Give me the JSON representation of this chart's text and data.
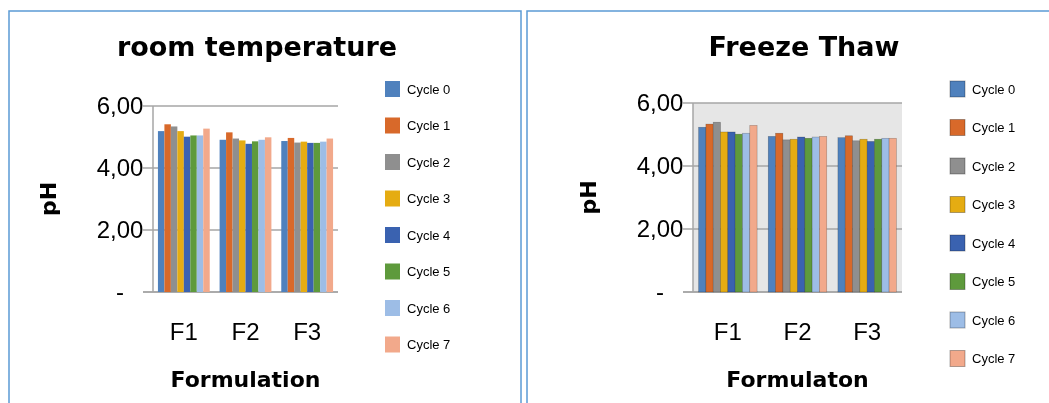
{
  "chart_data": [
    {
      "type": "bar",
      "title": "room temperature",
      "xlabel": "Formulation",
      "ylabel": "pH",
      "categories": [
        "F1",
        "F2",
        "F3"
      ],
      "ylim": [
        0,
        6
      ],
      "yticks": [
        {
          "value": 0,
          "label": "-"
        },
        {
          "value": 2,
          "label": "2,00"
        },
        {
          "value": 4,
          "label": "4,00"
        },
        {
          "value": 6,
          "label": "6,00"
        }
      ],
      "grid": "y",
      "legend": "right",
      "series": [
        {
          "name": "Cycle 0",
          "color": "#4f81bd",
          "values": [
            5.19,
            4.91,
            4.87
          ]
        },
        {
          "name": "Cycle 1",
          "color": "#d8692a",
          "values": [
            5.41,
            5.15,
            4.97
          ]
        },
        {
          "name": "Cycle 2",
          "color": "#8f8f8f",
          "values": [
            5.34,
            4.95,
            4.82
          ]
        },
        {
          "name": "Cycle 3",
          "color": "#e5ac12",
          "values": [
            5.19,
            4.89,
            4.85
          ]
        },
        {
          "name": "Cycle 4",
          "color": "#3a62b0",
          "values": [
            5.01,
            4.78,
            4.81
          ]
        },
        {
          "name": "Cycle 5",
          "color": "#5e9a3c",
          "values": [
            5.05,
            4.86,
            4.81
          ]
        },
        {
          "name": "Cycle 6",
          "color": "#9dbde6",
          "values": [
            5.05,
            4.91,
            4.85
          ]
        },
        {
          "name": "Cycle 7",
          "color": "#f2a98b",
          "values": [
            5.27,
            4.99,
            4.95
          ]
        }
      ]
    },
    {
      "type": "bar",
      "title": "Freeze Thaw",
      "xlabel": "Formulaton",
      "ylabel": "pH",
      "categories": [
        "F1",
        "F2",
        "F3"
      ],
      "ylim": [
        0,
        6
      ],
      "yticks": [
        {
          "value": 0,
          "label": "-"
        },
        {
          "value": 2,
          "label": "2,00"
        },
        {
          "value": 4,
          "label": "4,00"
        },
        {
          "value": 6,
          "label": "6,00"
        }
      ],
      "grid": "y",
      "legend": "right",
      "series": [
        {
          "name": "Cycle 0",
          "color": "#4f81bd",
          "values": [
            5.23,
            4.94,
            4.9
          ]
        },
        {
          "name": "Cycle 1",
          "color": "#d8692a",
          "values": [
            5.33,
            5.04,
            4.96
          ]
        },
        {
          "name": "Cycle 2",
          "color": "#8f8f8f",
          "values": [
            5.39,
            4.83,
            4.8
          ]
        },
        {
          "name": "Cycle 3",
          "color": "#e5ac12",
          "values": [
            5.08,
            4.85,
            4.85
          ]
        },
        {
          "name": "Cycle 4",
          "color": "#3a62b0",
          "values": [
            5.08,
            4.92,
            4.78
          ]
        },
        {
          "name": "Cycle 5",
          "color": "#5e9a3c",
          "values": [
            5.01,
            4.88,
            4.85
          ]
        },
        {
          "name": "Cycle 6",
          "color": "#9dbde6",
          "values": [
            5.04,
            4.92,
            4.88
          ]
        },
        {
          "name": "Cycle 7",
          "color": "#f2a98b",
          "values": [
            5.29,
            4.94,
            4.88
          ]
        }
      ]
    }
  ]
}
